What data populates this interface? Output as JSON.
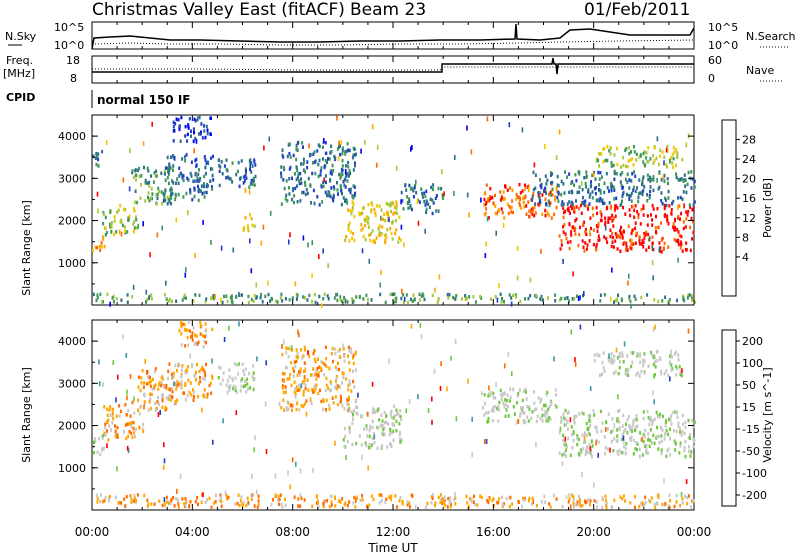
{
  "header": {
    "station": "Christmas Valley East (fitACF)",
    "beam": "Beam 23",
    "date": "01/Feb/2011"
  },
  "strip_labels": {
    "nsky": "N.Sky",
    "nsky_left_top": "10^5",
    "nsky_left_bottom": "10^0",
    "nsky_right_top": "10^5",
    "nsky_right_bottom": "10^0",
    "nsearch": "N.Search",
    "freq": "Freq.",
    "freq_unit": "[MHz]",
    "freq_top": "18",
    "freq_bottom": "8",
    "nave_top": "60",
    "nave_bottom": "0",
    "nave": "Nave",
    "cpid": "CPID",
    "cpid_value": "normal 150 IF"
  },
  "time_axis": {
    "title": "Time UT",
    "ticks": [
      "00:00",
      "04:00",
      "08:00",
      "12:00",
      "16:00",
      "20:00",
      "00:00"
    ]
  },
  "chart_data": [
    {
      "type": "heatmap",
      "name": "Power",
      "ylabel": "Slant Range [km]",
      "ylim": [
        0,
        4500
      ],
      "yticks": [
        1000,
        2000,
        3000,
        4000
      ],
      "xlim_hours": [
        0,
        24
      ],
      "colorbar_label": "Power [dB]",
      "colorbar_ticks": [
        "28",
        "24",
        "20",
        "16",
        "12",
        "8",
        "4"
      ],
      "colorbar_colors": [
        "#ff0000",
        "#ff6a00",
        "#ffa500",
        "#f2c800",
        "#a6c83c",
        "#3c965a",
        "#2a6e8c",
        "#1e3cc8",
        "#0000ff"
      ],
      "regions": [
        {
          "t": [
            0.0,
            0.5
          ],
          "r": [
            1300,
            1700
          ],
          "level": 6
        },
        {
          "t": [
            0.0,
            0.4
          ],
          "r": [
            3200,
            3700
          ],
          "level": 2
        },
        {
          "t": [
            0.4,
            1.8
          ],
          "r": [
            1700,
            2400
          ],
          "level": 4
        },
        {
          "t": [
            1.5,
            3.2
          ],
          "r": [
            2400,
            3300
          ],
          "level": 3
        },
        {
          "t": [
            2.8,
            4.8
          ],
          "r": [
            2500,
            3600
          ],
          "level": 2
        },
        {
          "t": [
            3.2,
            4.8
          ],
          "r": [
            3900,
            4500
          ],
          "level": 1
        },
        {
          "t": [
            5.0,
            6.5
          ],
          "r": [
            2800,
            3500
          ],
          "level": 2
        },
        {
          "t": [
            6.0,
            6.5
          ],
          "r": [
            1800,
            2200
          ],
          "level": 5
        },
        {
          "t": [
            7.5,
            10.5
          ],
          "r": [
            2400,
            3900
          ],
          "level": 2
        },
        {
          "t": [
            10.0,
            12.3
          ],
          "r": [
            1500,
            2500
          ],
          "level": 5
        },
        {
          "t": [
            12.3,
            14.0
          ],
          "r": [
            2200,
            2900
          ],
          "level": 2
        },
        {
          "t": [
            15.5,
            18.5
          ],
          "r": [
            2100,
            2900
          ],
          "level": 7
        },
        {
          "t": [
            18.6,
            24.0
          ],
          "r": [
            1300,
            2400
          ],
          "level": 8
        },
        {
          "t": [
            20.0,
            23.5
          ],
          "r": [
            3300,
            3800
          ],
          "level": 4
        },
        {
          "t": [
            17.5,
            24.0
          ],
          "r": [
            2400,
            3200
          ],
          "level": 2
        },
        {
          "t": [
            0.0,
            24.0
          ],
          "r": [
            100,
            300
          ],
          "level": 3
        }
      ]
    },
    {
      "type": "heatmap",
      "name": "Velocity",
      "ylabel": "Slant Range [km]",
      "ylim": [
        0,
        4500
      ],
      "yticks": [
        1000,
        2000,
        3000,
        4000
      ],
      "xlim_hours": [
        0,
        24
      ],
      "colorbar_label": "Velocity [m s^-1]",
      "colorbar_ticks": [
        "200",
        "100",
        "50",
        "15",
        "-15",
        "-50",
        "-100",
        "-200"
      ],
      "colorbar_colors": [
        "#1e3cc8",
        "#3c96aa",
        "#6ec83c",
        "#c8c8c8",
        "#c8c8c8",
        "#ffa500",
        "#ff6a00",
        "#ff0000"
      ],
      "regions": [
        {
          "t": [
            0.0,
            0.5
          ],
          "r": [
            1300,
            1900
          ],
          "level": 3
        },
        {
          "t": [
            0.4,
            2.0
          ],
          "r": [
            1700,
            2600
          ],
          "level": 5
        },
        {
          "t": [
            1.8,
            3.4
          ],
          "r": [
            2400,
            3400
          ],
          "level": 5
        },
        {
          "t": [
            3.0,
            4.8
          ],
          "r": [
            2600,
            3500
          ],
          "level": 5
        },
        {
          "t": [
            3.4,
            4.8
          ],
          "r": [
            3900,
            4500
          ],
          "level": 5
        },
        {
          "t": [
            5.0,
            6.5
          ],
          "r": [
            2800,
            3500
          ],
          "level": 3
        },
        {
          "t": [
            7.5,
            10.5
          ],
          "r": [
            2400,
            3900
          ],
          "level": 5
        },
        {
          "t": [
            10.0,
            12.3
          ],
          "r": [
            1500,
            2500
          ],
          "level": 3
        },
        {
          "t": [
            15.5,
            18.5
          ],
          "r": [
            2100,
            2900
          ],
          "level": 3
        },
        {
          "t": [
            18.6,
            24.0
          ],
          "r": [
            1300,
            2400
          ],
          "level": 3
        },
        {
          "t": [
            20.0,
            23.5
          ],
          "r": [
            3200,
            3800
          ],
          "level": 3
        },
        {
          "t": [
            0.0,
            24.0
          ],
          "r": [
            100,
            400
          ],
          "level": 5
        }
      ]
    }
  ]
}
